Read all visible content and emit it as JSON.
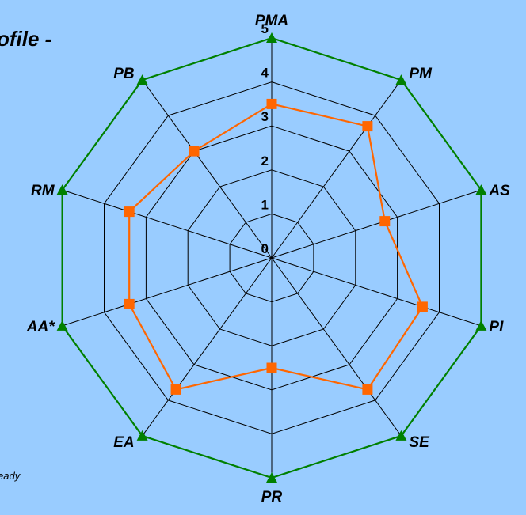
{
  "chart_data": {
    "type": "radar",
    "title_fragment": "ofile -",
    "note_fragment": "eady",
    "axes": [
      "PMA",
      "PM",
      "AS",
      "PI",
      "SE",
      "PR",
      "EA",
      "AA*",
      "RM",
      "PB"
    ],
    "rlim": [
      0,
      5
    ],
    "ticks": [
      "0",
      "1",
      "2",
      "3",
      "4",
      "5"
    ],
    "grid": true,
    "series": [
      {
        "values": [
          5,
          5,
          5,
          5,
          5,
          5,
          5,
          5,
          5,
          5
        ],
        "color": "#008000",
        "marker": "triangle"
      },
      {
        "values": [
          3.5,
          3.7,
          2.7,
          3.6,
          3.7,
          2.5,
          3.7,
          3.4,
          3.4,
          3.0
        ],
        "color": "#ff6600",
        "marker": "square"
      }
    ]
  }
}
